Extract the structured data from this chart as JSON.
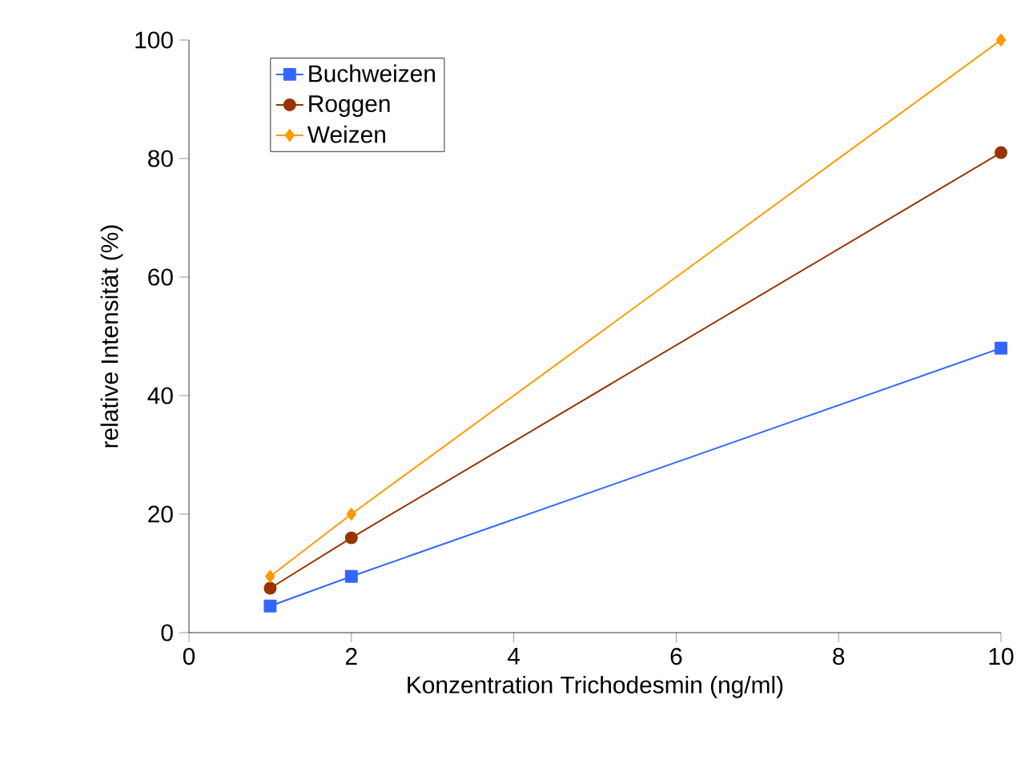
{
  "chart_data": {
    "type": "line",
    "xlabel": "Konzentration Trichodesmin (ng/ml)",
    "ylabel": "relative Intensität (%)",
    "xlim": [
      0,
      10
    ],
    "xticks": [
      0,
      2,
      4,
      6,
      8,
      10
    ],
    "ylim": [
      0,
      100
    ],
    "yticks": [
      0,
      20,
      40,
      60,
      80,
      100
    ],
    "grid": false,
    "legend": "top left",
    "line_style": "solid",
    "series": [
      {
        "name": "Buchweizen",
        "color": "#3366ff",
        "marker": "square",
        "x": [
          1,
          2,
          10
        ],
        "values": [
          4.5,
          9.5,
          48
        ]
      },
      {
        "name": "Roggen",
        "color": "#993300",
        "marker": "circle",
        "x": [
          1,
          2,
          10
        ],
        "values": [
          7.5,
          16,
          81
        ]
      },
      {
        "name": "Weizen",
        "color": "#ff9900",
        "marker": "diamond",
        "x": [
          1,
          2,
          10
        ],
        "values": [
          9.5,
          20,
          100
        ]
      }
    ]
  }
}
